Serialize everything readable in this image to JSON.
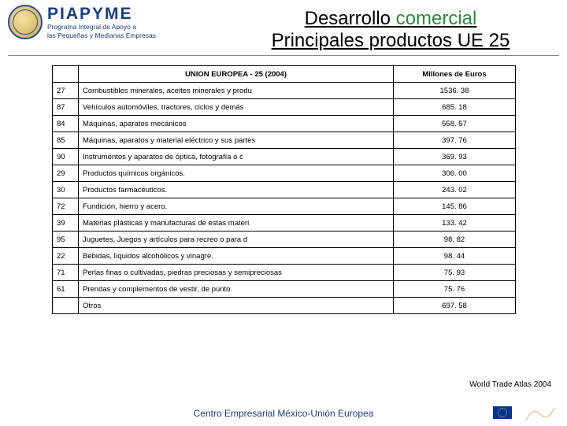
{
  "logo": {
    "title": "PIAPYME",
    "subtitle1": "Programa Integral de Apoyo a",
    "subtitle2": "las Pequeñas y Medianas Empresas"
  },
  "heading": {
    "line1_plain": "Desarrollo ",
    "line1_accent": "comercial",
    "line2": "Principales productos UE 25"
  },
  "table": {
    "head": {
      "col1": "",
      "col2": "UNION EUROPEA - 25 (2004)",
      "col3": "Millones de Euros"
    },
    "rows": [
      {
        "code": "27",
        "desc": "Combustibles minerales, aceites minerales y produ",
        "value": "1536. 38"
      },
      {
        "code": "87",
        "desc": "Vehículos automóviles, tractores, ciclos y demás",
        "value": "685. 18"
      },
      {
        "code": "84",
        "desc": "Máquinas, aparatos mecánicos",
        "value": "558. 57"
      },
      {
        "code": "85",
        "desc": "Máquinas, aparatos y material eléctrico y sus partes",
        "value": "397. 76"
      },
      {
        "code": "90",
        "desc": "Instrumentos y aparatos de óptica, fotografía o c",
        "value": "369. 93"
      },
      {
        "code": "29",
        "desc": "Productos químicos orgánicos.",
        "value": "306. 00"
      },
      {
        "code": "30",
        "desc": "Productos farmacéuticos.",
        "value": "243. 02"
      },
      {
        "code": "72",
        "desc": "Fundición, hierro y acero.",
        "value": "145. 86"
      },
      {
        "code": "39",
        "desc": "Materias plásticas y manufacturas de estas materi",
        "value": "133. 42"
      },
      {
        "code": "95",
        "desc": "Juguetes, Juegos y artículos para recreo o para d",
        "value": "98. 82"
      },
      {
        "code": "22",
        "desc": "Bebidas, líquidos alcohólicos y vinagre.",
        "value": "98. 44"
      },
      {
        "code": "71",
        "desc": "Perlas finas o cultivadas, piedras preciosas y semipreciosas",
        "value": "75. 93"
      },
      {
        "code": "61",
        "desc": "Prendas y complementos de vestir, de punto.",
        "value": "75. 76"
      },
      {
        "code": "",
        "desc": "Otros",
        "value": "697. 58"
      }
    ]
  },
  "source": "World Trade Atlas 2004",
  "footer": "Centro Empresarial México-Unión Europea",
  "colors": {
    "accent_green": "#2a8a3a",
    "brand_blue": "#1a3e7a",
    "eu_blue": "#003399",
    "eu_gold": "#ffcc00"
  }
}
